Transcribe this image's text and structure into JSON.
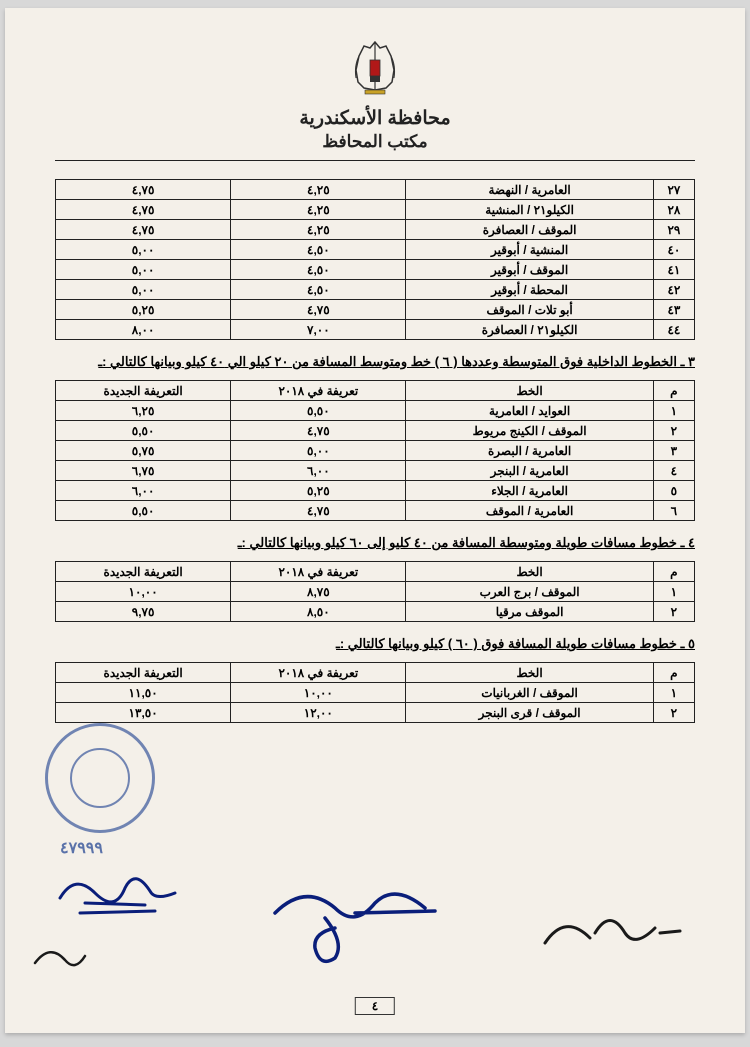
{
  "header": {
    "title1": "محافظة الأسكندرية",
    "title2": "مكتب المحافظ"
  },
  "table1": {
    "rows": [
      {
        "n": "٢٧",
        "route": "العامرية / النهضة",
        "p2018": "٤,٢٥",
        "pnew": "٤,٧٥"
      },
      {
        "n": "٢٨",
        "route": "الكيلو٢١ / المنشية",
        "p2018": "٤,٢٥",
        "pnew": "٤,٧٥"
      },
      {
        "n": "٢٩",
        "route": "الموقف / العصافرة",
        "p2018": "٤,٢٥",
        "pnew": "٤,٧٥"
      },
      {
        "n": "٤٠",
        "route": "المنشية / أبوقير",
        "p2018": "٤,٥٠",
        "pnew": "٥,٠٠"
      },
      {
        "n": "٤١",
        "route": "الموقف / أبوقير",
        "p2018": "٤,٥٠",
        "pnew": "٥,٠٠"
      },
      {
        "n": "٤٢",
        "route": "المحطة / أبوقير",
        "p2018": "٤,٥٠",
        "pnew": "٥,٠٠"
      },
      {
        "n": "٤٣",
        "route": "أبو تلات / الموقف",
        "p2018": "٤,٧٥",
        "pnew": "٥,٢٥"
      },
      {
        "n": "٤٤",
        "route": "الكيلو٢١ / العصافرة",
        "p2018": "٧,٠٠",
        "pnew": "٨,٠٠"
      }
    ]
  },
  "section3": {
    "title": "٣ ـ الخطوط الداخلية فوق المتوسطة وعددها ( ٦ ) خط ومتوسط المسافة من ٢٠ كيلو الي ٤٠ كيلو وبيانها كالتالي :ـ",
    "headers": {
      "m": "م",
      "route": "الخط",
      "p2018": "تعريفة في ٢٠١٨",
      "pnew": "التعريفة الجديدة"
    },
    "rows": [
      {
        "n": "١",
        "route": "العوايد / العامرية",
        "p2018": "٥,٥٠",
        "pnew": "٦,٢٥"
      },
      {
        "n": "٢",
        "route": "الموقف / الكينج مريوط",
        "p2018": "٤,٧٥",
        "pnew": "٥,٥٠"
      },
      {
        "n": "٣",
        "route": "العامرية / البصرة",
        "p2018": "٥,٠٠",
        "pnew": "٥,٧٥"
      },
      {
        "n": "٤",
        "route": "العامرية / البنجر",
        "p2018": "٦,٠٠",
        "pnew": "٦,٧٥"
      },
      {
        "n": "٥",
        "route": "العامرية / الجلاء",
        "p2018": "٥,٢٥",
        "pnew": "٦,٠٠"
      },
      {
        "n": "٦",
        "route": "العامرية / الموقف",
        "p2018": "٤,٧٥",
        "pnew": "٥,٥٠"
      }
    ]
  },
  "section4": {
    "title": "٤ ـ خطوط مسافات طويلة ومتوسطة المسافة من ٤٠ كليو إلى ٦٠ كيلو وبيانها كالتالي :ـ",
    "headers": {
      "m": "م",
      "route": "الخط",
      "p2018": "تعريفة في ٢٠١٨",
      "pnew": "التعريفة الجديدة"
    },
    "rows": [
      {
        "n": "١",
        "route": "الموقف / برج العرب",
        "p2018": "٨,٧٥",
        "pnew": "١٠,٠٠"
      },
      {
        "n": "٢",
        "route": "الموقف مرقيا",
        "p2018": "٨,٥٠",
        "pnew": "٩,٧٥"
      }
    ]
  },
  "section5": {
    "title": "٥ ـ خطوط مسافات طويلة المسافة فوق ( ٦٠ ) كيلو وبيانها كالتالي :ـ",
    "headers": {
      "m": "م",
      "route": "الخط",
      "p2018": "تعريفة في ٢٠١٨",
      "pnew": "التعريفة الجديدة"
    },
    "rows": [
      {
        "n": "١",
        "route": "الموقف / الغربانيات",
        "p2018": "١٠,٠٠",
        "pnew": "١١,٥٠"
      },
      {
        "n": "٢",
        "route": "الموقف / قرى البنجر",
        "p2018": "١٢,٠٠",
        "pnew": "١٣,٥٠"
      }
    ]
  },
  "stamp_number": "٤٧٩٩٩",
  "page_number": "٤",
  "colors": {
    "page_bg": "#f4f0e9",
    "body_bg": "#d8d8d8",
    "text": "#222222",
    "border": "#222222",
    "stamp": "#1a3d8f",
    "sig": "#0a1e7a",
    "sig2": "#1a1a1a"
  }
}
